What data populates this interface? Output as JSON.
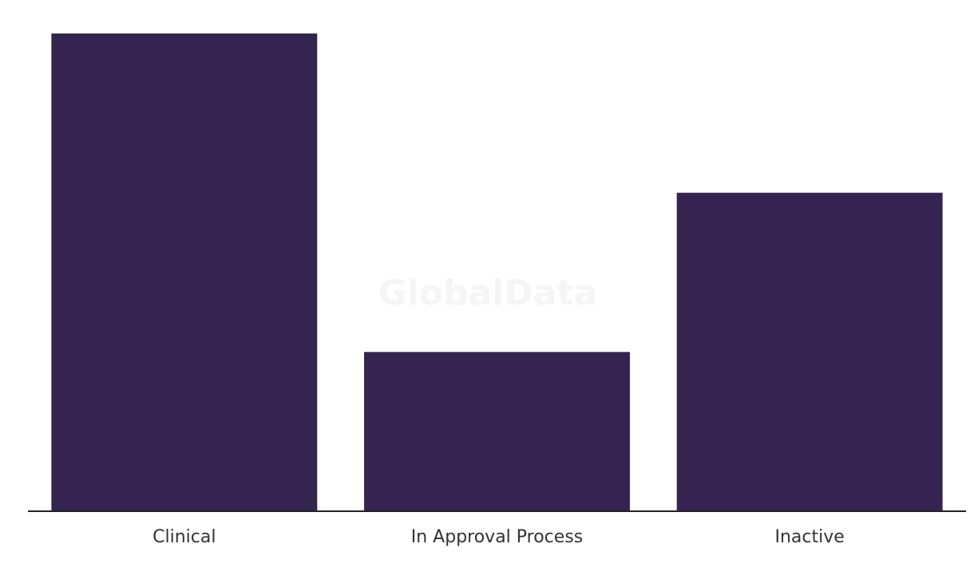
{
  "chart_data": {
    "type": "bar",
    "watermark": "GlobalData",
    "categories": [
      "Clinical",
      "In Approval Process",
      "Inactive"
    ],
    "values": [
      3,
      1,
      2
    ],
    "color": "#352350",
    "ylim": [
      0,
      3
    ]
  }
}
